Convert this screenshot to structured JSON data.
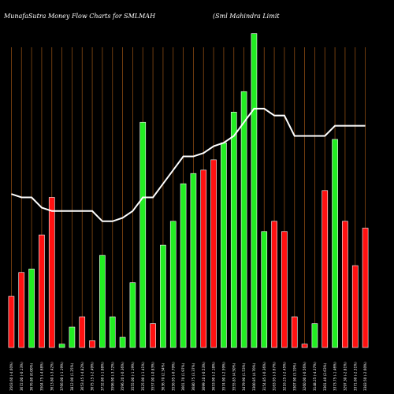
{
  "chart_data": {
    "type": "bar",
    "title": "MunafaSutra  Money Flow  Charts for SMLMAH",
    "subtitle": "(Sml Mahindra  Limit",
    "colors": {
      "background": "#000000",
      "grid": "#8a4a12",
      "up": "#22ee22",
      "down": "#ff1111",
      "line": "#ffffff",
      "text": "#ffffff"
    },
    "ylim": [
      0,
      100
    ],
    "line_ylim": [
      0,
      100
    ],
    "categories": [
      "3503.60 (-4.60%)",
      "3672.00 (-0.13%)",
      "3676.80 (0.00%)",
      "3504.75 (-4.68%)",
      "3613.80 (-3.42%)",
      "3766.00 (-1.19%)",
      "3812.00 (1.25%)",
      "3653.45 (-4.82%)",
      "3675.15 (-2.49%)",
      "3732.80 (-1.08%)",
      "3596.90 (-3.72%)",
      "3596.20 (-0.36%)",
      "3555.00 (-1.19%)",
      "3525.00 (-1.41%)",
      "3557.00 (-0.83%)",
      "3636.70 (2.34%)",
      "3556.95 (-0.79%)",
      "3601.70 (1.97%)",
      "3680.75 (3.37%)",
      "3699.10 (-0.53%)",
      "3653.90 (-2.18%)",
      "3574.90 (-2.59%)",
      "3555.85 (4.50%)",
      "3479.90 (1.53%)",
      "3300.85 (4.70%)",
      "3154.85 (-0.36%)",
      "3163.95 (-3.67%)",
      "3216.25 (-2.45%)",
      "3307.90 (3.19%)",
      "3260.00 (-0.56%)",
      "3148.25 (-4.37%)",
      "3301.40 (2.63%)",
      "3373.75 (-1.46%)",
      "3297.30 (-2.81%)",
      "3371.60 (-2.31%)",
      "3383.50 (-2.60%)"
    ],
    "bar_direction": [
      "down",
      "down",
      "up",
      "down",
      "down",
      "up",
      "up",
      "down",
      "down",
      "up",
      "up",
      "up",
      "up",
      "up",
      "down",
      "up",
      "up",
      "up",
      "up",
      "down",
      "down",
      "up",
      "up",
      "up",
      "up",
      "up",
      "down",
      "down",
      "down",
      "down",
      "up",
      "down",
      "up",
      "down",
      "down",
      "down"
    ],
    "values": [
      15,
      22,
      23,
      33,
      44,
      1,
      6,
      9,
      2,
      27,
      9,
      3,
      19,
      66,
      7,
      30,
      37,
      48,
      51,
      52,
      55,
      60,
      69,
      75,
      92,
      34,
      37,
      34,
      9,
      1,
      7,
      46,
      61,
      37,
      24,
      35
    ],
    "line_values": [
      45,
      44,
      44,
      41,
      40,
      40,
      40,
      40,
      40,
      37,
      37,
      38,
      40,
      44,
      44,
      48,
      52,
      56,
      56,
      57,
      59,
      60,
      62,
      66,
      70,
      70,
      68,
      68,
      62,
      62,
      62,
      62,
      65,
      65,
      65,
      65
    ]
  }
}
